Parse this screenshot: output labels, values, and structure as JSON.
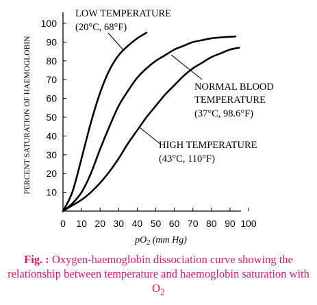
{
  "chart_data": {
    "type": "line",
    "xlabel": "pO₂ (mm Hg)",
    "ylabel": "PERCENT SATURATION OF HAEMOGLOBIN",
    "xlim": [
      0,
      100
    ],
    "ylim": [
      0,
      100
    ],
    "x_ticks": [
      0,
      10,
      20,
      30,
      40,
      50,
      60,
      70,
      80,
      90,
      100
    ],
    "y_ticks": [
      10,
      20,
      30,
      40,
      50,
      60,
      70,
      80,
      90,
      100
    ],
    "series": [
      {
        "name": "LOW TEMPERATURE",
        "name_sub": "(20°C, 68°F)",
        "x": [
          0,
          5,
          10,
          15,
          20,
          25,
          30,
          35,
          40,
          45
        ],
        "y": [
          0,
          10,
          28,
          47,
          63,
          75,
          83,
          88,
          92,
          95
        ]
      },
      {
        "name": "NORMAL BLOOD TEMPERATURE",
        "name_lines": [
          "NORMAL BLOOD",
          "TEMPERATURE"
        ],
        "name_sub": "(37°C, 98.6°F)",
        "x": [
          0,
          5,
          10,
          15,
          20,
          25,
          30,
          35,
          40,
          45,
          50,
          55,
          60,
          65,
          70,
          75,
          80,
          85,
          90,
          93
        ],
        "y": [
          0,
          4,
          10,
          20,
          33,
          45,
          56,
          64,
          71,
          76,
          80,
          83,
          86,
          88,
          90,
          91,
          92,
          92.5,
          92.8,
          93
        ]
      },
      {
        "name": "HIGH TEMPERATURE",
        "name_sub": "(43°C, 110°F)",
        "x": [
          0,
          5,
          10,
          15,
          20,
          25,
          30,
          35,
          40,
          45,
          50,
          55,
          60,
          65,
          70,
          75,
          80,
          85,
          90,
          95
        ],
        "y": [
          0,
          3,
          6,
          10,
          15,
          21,
          28,
          36,
          43,
          50,
          56,
          62,
          67,
          72,
          76,
          79,
          82,
          84,
          86,
          87
        ]
      }
    ]
  },
  "caption": {
    "prefix": "Fig. :",
    "text": " Oxygen-haemoglobin dissociation curve showing the relationship between temperature and haemoglobin saturation with O",
    "sub": "2"
  }
}
